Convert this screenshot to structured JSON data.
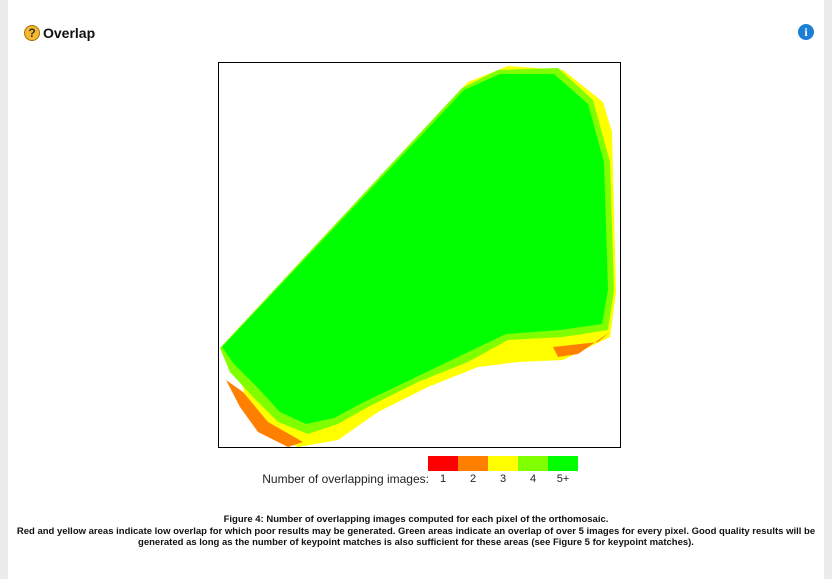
{
  "header": {
    "title": "Overlap",
    "help_icon": "?",
    "info_icon": "i"
  },
  "legend": {
    "label": "Number of overlapping images:",
    "items": [
      {
        "label": "1",
        "color": "#ff0000"
      },
      {
        "label": "2",
        "color": "#ff8000"
      },
      {
        "label": "3",
        "color": "#ffff00"
      },
      {
        "label": "4",
        "color": "#80ff00"
      },
      {
        "label": "5+",
        "color": "#00ff00"
      }
    ]
  },
  "caption": {
    "title": "Figure 4: Number of overlapping images computed for each pixel of the orthomosaic.",
    "text": "Red and yellow areas indicate low overlap for which poor results may be generated. Green areas indicate an overlap of over 5 images for every pixel. Good quality results will be generated as long as the number of keypoint matches is also sufficient for these areas (see Figure 5 for keypoint matches)."
  }
}
